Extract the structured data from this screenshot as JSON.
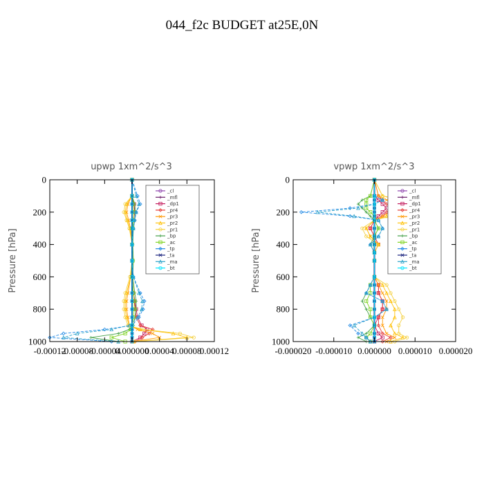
{
  "title": "044_f2c  BUDGET at25E,0N",
  "legend": [
    {
      "name": "_cl",
      "color": "#8e44ad"
    },
    {
      "name": "_mfl",
      "color": "#6a1b6a"
    },
    {
      "name": "_dp1",
      "color": "#c2185b"
    },
    {
      "name": "_pr4",
      "color": "#e53935"
    },
    {
      "name": "_pr3",
      "color": "#ff9800"
    },
    {
      "name": "_pr2",
      "color": "#ffc107"
    },
    {
      "name": "_pr1",
      "color": "#f4d03f"
    },
    {
      "name": "_bp",
      "color": "#43a047"
    },
    {
      "name": "_ac",
      "color": "#7ed321"
    },
    {
      "name": "_tp",
      "color": "#1e88e5"
    },
    {
      "name": "_ta",
      "color": "#1a237e"
    },
    {
      "name": "_ma",
      "color": "#26a0c8"
    },
    {
      "name": "_bt",
      "color": "#00e5ff"
    }
  ],
  "chart_data": [
    {
      "type": "line",
      "title": "upwp   1xm^2/s^3",
      "ylabel": "Pressure [hPa]",
      "xlabel": "",
      "xlim": [
        -0.00012,
        0.00012
      ],
      "ylim": [
        1000,
        0
      ],
      "y_ticks": [
        0,
        200,
        400,
        600,
        800,
        1000
      ],
      "x_tick_labels": [
        "-0.00012",
        "-0.00008",
        "-0.00004",
        "0.000000",
        "0.00004",
        "0.00008",
        "0.00012"
      ],
      "x_ticks": [
        -0.00012,
        -8e-05,
        -4e-05,
        0,
        4e-05,
        8e-05,
        0.00012
      ],
      "pressure": [
        0,
        100,
        150,
        200,
        250,
        300,
        400,
        500,
        600,
        700,
        750,
        800,
        850,
        900,
        925,
        950,
        975,
        1000
      ],
      "series": [
        {
          "name": "_cl",
          "x": [
            0,
            0,
            0,
            0,
            0,
            0,
            0,
            0,
            0,
            0,
            0,
            0,
            0,
            0,
            0,
            0,
            0,
            0
          ]
        },
        {
          "name": "_mfl",
          "x": [
            0,
            0,
            0,
            0,
            0,
            0,
            0,
            0,
            0,
            0,
            0,
            0,
            0,
            0,
            0,
            0,
            0,
            0
          ]
        },
        {
          "name": "_dp1",
          "x": [
            0,
            0,
            3e-06,
            4e-06,
            2e-06,
            0,
            0,
            0,
            0,
            2e-06,
            4e-06,
            6e-06,
            8e-06,
            1.4e-05,
            2.2e-05,
            1.8e-05,
            1.2e-05,
            0
          ]
        },
        {
          "name": "_pr4",
          "x": [
            0,
            0,
            2e-06,
            3e-06,
            2e-06,
            0,
            0,
            0,
            0,
            2e-06,
            3e-06,
            5e-06,
            6e-06,
            1.2e-05,
            3e-05,
            2.5e-05,
            1.5e-05,
            4e-06
          ]
        },
        {
          "name": "_pr3",
          "x": [
            0,
            0,
            -6e-06,
            -8e-06,
            -5e-06,
            -2e-06,
            0,
            0,
            -2e-06,
            -6e-06,
            -8e-06,
            -8e-06,
            -6e-06,
            -4e-06,
            8e-06,
            3e-05,
            4e-05,
            0
          ]
        },
        {
          "name": "_pr2",
          "x": [
            0,
            0,
            -8e-06,
            -1e-05,
            -7e-06,
            -3e-06,
            0,
            0,
            -2e-06,
            -8e-06,
            -1e-05,
            -1e-05,
            -8e-06,
            -4e-06,
            1.2e-05,
            6e-05,
            8e-05,
            2e-06
          ]
        },
        {
          "name": "_pr1",
          "x": [
            0,
            0,
            -1e-05,
            -1.2e-05,
            -8e-06,
            -4e-06,
            0,
            0,
            -3e-06,
            -1e-05,
            -1.2e-05,
            -1.2e-05,
            -1e-05,
            -6e-06,
            1.6e-05,
            7e-05,
            9e-05,
            4e-06
          ]
        },
        {
          "name": "_bp",
          "x": [
            0,
            0,
            4e-06,
            5e-06,
            4e-06,
            2e-06,
            1e-06,
            2e-06,
            1e-06,
            4e-06,
            6e-06,
            6e-06,
            4e-06,
            2e-06,
            -4e-06,
            -2e-05,
            -6e-05,
            -2e-05
          ]
        },
        {
          "name": "_ac",
          "x": [
            0,
            0,
            2e-06,
            3e-06,
            2e-06,
            1e-06,
            0,
            1e-06,
            0,
            2e-06,
            3e-06,
            3e-06,
            2e-06,
            0,
            -2e-06,
            -1e-05,
            -3e-05,
            -1e-05
          ]
        },
        {
          "name": "_tp",
          "x": [
            0,
            8e-06,
            1.2e-05,
            6e-06,
            4e-06,
            2e-06,
            0,
            0,
            2e-06,
            1.2e-05,
            1.8e-05,
            1.6e-05,
            1e-05,
            0,
            -4e-05,
            -0.0001,
            -0.00012,
            -3e-05
          ]
        },
        {
          "name": "_ta",
          "x": [
            0,
            0,
            0,
            0,
            0,
            0,
            0,
            0,
            0,
            0,
            0,
            0,
            0,
            0,
            0,
            0,
            0,
            0
          ]
        },
        {
          "name": "_ma",
          "x": [
            0,
            6e-06,
            1e-05,
            6e-06,
            3e-06,
            2e-06,
            0,
            0,
            2e-06,
            1e-05,
            1.5e-05,
            1.4e-05,
            8e-06,
            -4e-06,
            -3e-05,
            -8e-05,
            -0.0001,
            -2e-05
          ]
        },
        {
          "name": "_bt",
          "x": [
            0,
            0,
            0,
            0,
            0,
            0,
            0,
            0,
            0,
            0,
            0,
            0,
            0,
            0,
            0,
            0,
            0,
            0
          ]
        }
      ]
    },
    {
      "type": "line",
      "title": "vpwp   1xm^2/s^3",
      "ylabel": "Pressure [hPa]",
      "xlabel": "",
      "xlim": [
        -2e-05,
        2e-05
      ],
      "ylim": [
        1000,
        0
      ],
      "y_ticks": [
        0,
        200,
        400,
        600,
        800,
        1000
      ],
      "x_tick_labels": [
        "-0.000020",
        "-0.000010",
        "0.000000",
        "0.000010",
        "0.000020"
      ],
      "x_ticks": [
        -2e-05,
        -1e-05,
        0,
        1e-05,
        2e-05
      ],
      "pressure": [
        0,
        100,
        125,
        150,
        175,
        200,
        225,
        250,
        300,
        350,
        400,
        450,
        500,
        600,
        650,
        700,
        750,
        800,
        850,
        900,
        950,
        975,
        1000
      ],
      "series": [
        {
          "name": "_cl",
          "x": [
            0,
            0,
            0,
            0,
            0,
            0,
            0,
            0,
            0,
            0,
            0,
            0,
            0,
            0,
            0,
            0,
            0,
            0,
            0,
            0,
            0,
            0,
            0
          ]
        },
        {
          "name": "_mfl",
          "x": [
            0,
            0,
            0,
            0,
            0,
            0,
            0,
            0,
            0,
            0,
            0,
            0,
            0,
            0,
            0,
            0,
            0,
            0,
            0,
            0,
            0,
            0,
            0
          ]
        },
        {
          "name": "_dp1",
          "x": [
            0,
            0,
            1e-06,
            2e-06,
            3e-06,
            2e-06,
            1e-06,
            0,
            -1e-06,
            0,
            1e-06,
            0,
            0,
            0,
            1e-06,
            1e-06,
            2e-06,
            2e-06,
            1e-06,
            0,
            1e-06,
            2e-06,
            0
          ]
        },
        {
          "name": "_pr4",
          "x": [
            0,
            1e-06,
            2e-06,
            3e-06,
            4e-06,
            3e-06,
            2e-06,
            0,
            -1e-06,
            0,
            1e-06,
            0,
            0,
            0,
            1e-06,
            1e-06,
            2e-06,
            2e-06,
            1e-06,
            1e-06,
            2e-06,
            4e-06,
            2e-06
          ]
        },
        {
          "name": "_pr3",
          "x": [
            0,
            1e-06,
            3e-06,
            5e-06,
            6e-06,
            4e-06,
            2e-06,
            0,
            -2e-06,
            -1e-06,
            1e-06,
            0,
            0,
            0,
            1e-06,
            2e-06,
            3e-06,
            3e-06,
            2e-06,
            2e-06,
            3e-06,
            5e-06,
            3e-06
          ]
        },
        {
          "name": "_pr2",
          "x": [
            0,
            2e-06,
            6e-06,
            1e-05,
            1.4e-05,
            8e-06,
            3e-06,
            0,
            -2e-06,
            -1e-06,
            1e-06,
            0,
            0,
            0,
            2e-06,
            3e-06,
            4e-06,
            5e-06,
            5e-06,
            4e-06,
            5e-06,
            7e-06,
            4e-06
          ]
        },
        {
          "name": "_pr1",
          "x": [
            0,
            2e-06,
            8e-06,
            1.2e-05,
            1.6e-05,
            9e-06,
            4e-06,
            0,
            -3e-06,
            -2e-06,
            1e-06,
            0,
            0,
            0,
            3e-06,
            4e-06,
            5e-06,
            6e-06,
            7e-06,
            6e-06,
            6e-06,
            8e-06,
            5e-06
          ]
        },
        {
          "name": "_bp",
          "x": [
            0,
            -1e-06,
            -3e-06,
            -4e-06,
            -3e-06,
            -2e-06,
            -1e-06,
            0,
            1e-06,
            0,
            -1e-06,
            0,
            0,
            0,
            -1e-06,
            -2e-06,
            -3e-06,
            -2e-06,
            -1e-06,
            0,
            -2e-06,
            -4e-06,
            -2e-06
          ]
        },
        {
          "name": "_ac",
          "x": [
            0,
            -1e-06,
            -2e-06,
            -2e-06,
            -2e-06,
            -1e-06,
            0,
            0,
            1e-06,
            0,
            0,
            0,
            0,
            0,
            -1e-06,
            -1e-06,
            -2e-06,
            -1e-06,
            -1e-06,
            0,
            -1e-06,
            -2e-06,
            -1e-06
          ]
        },
        {
          "name": "_tp",
          "x": [
            0,
            0,
            2e-06,
            0,
            -6e-06,
            -1.8e-05,
            -6e-06,
            1e-06,
            2e-06,
            1e-06,
            -1e-06,
            0,
            0,
            0,
            -1e-06,
            -2e-06,
            2e-06,
            3e-06,
            0,
            -6e-06,
            -4e-06,
            -2e-06,
            -1e-06
          ]
        },
        {
          "name": "_ta",
          "x": [
            0,
            0,
            0,
            0,
            0,
            0,
            0,
            0,
            0,
            0,
            0,
            0,
            0,
            0,
            0,
            0,
            0,
            0,
            0,
            0,
            0,
            0,
            0
          ]
        },
        {
          "name": "_ma",
          "x": [
            0,
            0,
            2e-06,
            0,
            -4e-06,
            -1.4e-05,
            -5e-06,
            1e-06,
            2e-06,
            1e-06,
            -1e-06,
            0,
            0,
            0,
            -1e-06,
            -2e-06,
            2e-06,
            3e-06,
            0,
            -5e-06,
            -3e-06,
            -2e-06,
            -1e-06
          ]
        },
        {
          "name": "_bt",
          "x": [
            0,
            0,
            0,
            0,
            0,
            0,
            0,
            0,
            0,
            0,
            0,
            0,
            0,
            0,
            0,
            0,
            0,
            0,
            0,
            0,
            0,
            0,
            0
          ]
        }
      ]
    }
  ]
}
